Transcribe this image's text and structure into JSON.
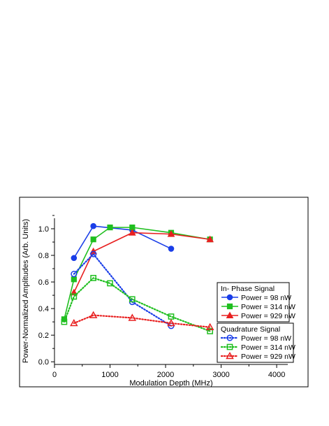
{
  "chart_data": {
    "type": "line",
    "xlabel": "Modulation Depth (MHz)",
    "ylabel": "Power-Normalized Amplitudes (Arb. Units)",
    "xlim": [
      0,
      4200
    ],
    "ylim": [
      -0.02,
      1.1
    ],
    "x_ticks": [
      "0",
      "1000",
      "2000",
      "3000",
      "4000"
    ],
    "y_ticks": [
      "0.0",
      "0.2",
      "0.4",
      "0.6",
      "0.8",
      "1.0"
    ],
    "grid": false,
    "legend_placement": "right",
    "legend_groups": [
      {
        "title": "In- Phase Signal",
        "entries": [
          {
            "label": "Power = 98 nW",
            "series": 0
          },
          {
            "label": "Power = 314 nW",
            "series": 1
          },
          {
            "label": "Power = 929 nW",
            "series": 2
          }
        ]
      },
      {
        "title": "Quadrature Signal",
        "entries": [
          {
            "label": "Power = 98 nW",
            "series": 3
          },
          {
            "label": "Power = 314 nW",
            "series": 4
          },
          {
            "label": "Power = 929 nW",
            "series": 5
          }
        ]
      }
    ],
    "series": [
      {
        "name": "Power = 98 nW",
        "group": "In- Phase Signal",
        "color": "#1a3ee8",
        "marker": "circle-filled",
        "line": "solid",
        "x": [
          350,
          700,
          1400,
          2100
        ],
        "y": [
          0.78,
          1.02,
          0.99,
          0.85
        ]
      },
      {
        "name": "Power = 314 nW",
        "group": "In- Phase Signal",
        "color": "#1fbf1f",
        "marker": "square-filled",
        "line": "solid",
        "x": [
          175,
          350,
          700,
          1000,
          1400,
          2100,
          2800
        ],
        "y": [
          0.32,
          0.62,
          0.92,
          1.01,
          1.01,
          0.97,
          0.92
        ]
      },
      {
        "name": "Power = 929 nW",
        "group": "In- Phase Signal",
        "color": "#e82020",
        "marker": "triangle-filled",
        "line": "solid",
        "x": [
          350,
          700,
          1400,
          2100,
          2800
        ],
        "y": [
          0.52,
          0.83,
          0.97,
          0.96,
          0.92
        ]
      },
      {
        "name": "Power = 98 nW",
        "group": "Quadrature Signal",
        "color": "#1a3ee8",
        "marker": "circle-open",
        "line": "dotted",
        "x": [
          350,
          700,
          1400,
          2100
        ],
        "y": [
          0.66,
          0.81,
          0.45,
          0.27
        ]
      },
      {
        "name": "Power = 314 nW",
        "group": "Quadrature Signal",
        "color": "#1fbf1f",
        "marker": "square-open",
        "line": "dotted",
        "x": [
          175,
          350,
          700,
          1000,
          1400,
          2100,
          2800
        ],
        "y": [
          0.3,
          0.49,
          0.63,
          0.59,
          0.47,
          0.34,
          0.23
        ]
      },
      {
        "name": "Power = 929 nW",
        "group": "Quadrature Signal",
        "color": "#e82020",
        "marker": "triangle-open",
        "line": "dotted",
        "x": [
          350,
          700,
          1400,
          2100,
          2800
        ],
        "y": [
          0.29,
          0.35,
          0.33,
          0.29,
          0.26
        ]
      }
    ]
  }
}
